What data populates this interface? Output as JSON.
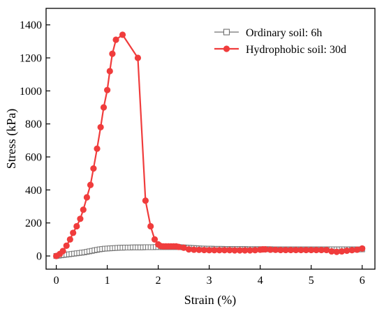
{
  "chart_data": {
    "type": "line",
    "xlabel": "Strain (%)",
    "ylabel": "Stress (kPa)",
    "xlim": [
      -0.2,
      6.25
    ],
    "ylim": [
      -80,
      1500
    ],
    "xticks": [
      0,
      1,
      2,
      3,
      4,
      5,
      6
    ],
    "yticks": [
      0,
      200,
      400,
      600,
      800,
      1000,
      1200,
      1400
    ],
    "grid": false,
    "legend_position": "top-right",
    "series": [
      {
        "name": "Ordinary soil: 6h",
        "color": "#707070",
        "marker": "open-square",
        "x": [
          0,
          0.05,
          0.1,
          0.15,
          0.2,
          0.25,
          0.3,
          0.35,
          0.4,
          0.45,
          0.5,
          0.55,
          0.6,
          0.65,
          0.7,
          0.75,
          0.8,
          0.85,
          0.9,
          0.95,
          1.0,
          1.05,
          1.1,
          1.15,
          1.2,
          1.25,
          1.3,
          1.35,
          1.4,
          1.45,
          1.5,
          1.55,
          1.6,
          1.65,
          1.7,
          1.75,
          1.8,
          1.85,
          1.9,
          1.95,
          2.0,
          2.05,
          2.1,
          2.15,
          2.2,
          2.25,
          2.3,
          2.35,
          2.4,
          2.45,
          2.5,
          2.55,
          2.6,
          2.65,
          2.7,
          2.75,
          2.8,
          2.85,
          2.9,
          2.95,
          3.0,
          3.05,
          3.1,
          3.15,
          3.2,
          3.25,
          3.3,
          3.35,
          3.4,
          3.45,
          3.5,
          3.55,
          3.6,
          3.65,
          3.7,
          3.75,
          3.8,
          3.85,
          3.9,
          3.95,
          4.0,
          4.05,
          4.1,
          4.15,
          4.2,
          4.25,
          4.3,
          4.35,
          4.4,
          4.45,
          4.5,
          4.55,
          4.6,
          4.65,
          4.7,
          4.75,
          4.8,
          4.85,
          4.9,
          4.95,
          5.0,
          5.05,
          5.1,
          5.15,
          5.2,
          5.25,
          5.3,
          5.35,
          5.4,
          5.45,
          5.5,
          5.55,
          5.6,
          5.65,
          5.7,
          5.75,
          5.8,
          5.85,
          5.9,
          5.95,
          6.0
        ],
        "y": [
          0,
          2,
          4,
          6,
          8,
          10,
          12,
          14,
          16,
          18,
          20,
          22,
          25,
          28,
          31,
          34,
          37,
          40,
          42,
          44,
          45,
          46,
          47,
          48,
          49,
          50,
          50,
          51,
          51,
          51,
          52,
          52,
          52,
          52,
          52,
          53,
          53,
          53,
          53,
          54,
          54,
          54,
          54,
          54,
          54,
          54,
          54,
          54,
          54,
          53,
          52,
          51,
          50,
          49,
          48,
          47,
          46,
          45,
          45,
          44,
          44,
          44,
          43,
          43,
          43,
          43,
          42,
          42,
          42,
          42,
          42,
          42,
          42,
          42,
          42,
          41,
          41,
          41,
          41,
          41,
          41,
          41,
          41,
          41,
          41,
          40,
          40,
          40,
          40,
          40,
          40,
          40,
          40,
          40,
          40,
          40,
          40,
          40,
          40,
          40,
          40,
          40,
          40,
          40,
          40,
          40,
          40,
          40,
          40,
          40,
          40,
          40,
          40,
          40,
          40,
          40,
          40,
          40,
          40,
          40,
          40
        ]
      },
      {
        "name": "Hydrophobic soil: 30d",
        "color": "#f03c3c",
        "marker": "filled-circle",
        "x": [
          0,
          0.07,
          0.13,
          0.2,
          0.27,
          0.33,
          0.4,
          0.47,
          0.53,
          0.6,
          0.67,
          0.73,
          0.8,
          0.87,
          0.93,
          1.0,
          1.05,
          1.1,
          1.17,
          1.3,
          1.6,
          1.75,
          1.85,
          1.93,
          2.0,
          2.05,
          2.1,
          2.15,
          2.2,
          2.25,
          2.3,
          2.35,
          2.4,
          2.5,
          2.6,
          2.7,
          2.8,
          2.9,
          3.0,
          3.1,
          3.2,
          3.3,
          3.4,
          3.5,
          3.6,
          3.7,
          3.8,
          3.9,
          4.0,
          4.05,
          4.1,
          4.2,
          4.3,
          4.4,
          4.5,
          4.6,
          4.7,
          4.8,
          4.9,
          5.0,
          5.1,
          5.2,
          5.3,
          5.4,
          5.5,
          5.6,
          5.7,
          5.8,
          5.9,
          6.0
        ],
        "y": [
          0,
          12,
          30,
          62,
          100,
          140,
          180,
          225,
          280,
          355,
          430,
          530,
          650,
          780,
          900,
          1005,
          1120,
          1225,
          1310,
          1340,
          1200,
          335,
          180,
          100,
          70,
          60,
          58,
          58,
          58,
          58,
          58,
          58,
          55,
          50,
          40,
          38,
          37,
          36,
          35,
          35,
          35,
          35,
          35,
          34,
          34,
          34,
          34,
          35,
          38,
          40,
          40,
          38,
          37,
          36,
          36,
          36,
          36,
          36,
          36,
          36,
          36,
          36,
          36,
          28,
          25,
          28,
          32,
          35,
          38,
          45
        ]
      }
    ]
  }
}
